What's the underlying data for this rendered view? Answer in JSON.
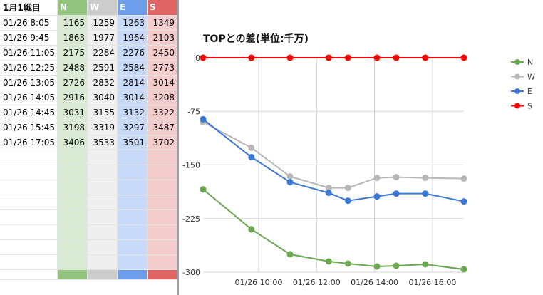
{
  "sheet": {
    "header": [
      "1月1戦目",
      "N",
      "W",
      "E",
      "S"
    ],
    "rows": [
      [
        "01/26 8:05",
        "1165",
        "1259",
        "1263",
        "1349"
      ],
      [
        "01/26 9:45",
        "1863",
        "1977",
        "1964",
        "2103"
      ],
      [
        "01/26 11:05",
        "2175",
        "2284",
        "2276",
        "2450"
      ],
      [
        "01/26 12:25",
        "2488",
        "2591",
        "2584",
        "2773"
      ],
      [
        "01/26 13:05",
        "2726",
        "2832",
        "2814",
        "3014"
      ],
      [
        "01/26 14:05",
        "2916",
        "3040",
        "3014",
        "3208"
      ],
      [
        "01/26 14:45",
        "3031",
        "3155",
        "3132",
        "3322"
      ],
      [
        "01/26 15:45",
        "3198",
        "3319",
        "3297",
        "3487"
      ],
      [
        "01/26 17:05",
        "3406",
        "3533",
        "3501",
        "3702"
      ]
    ],
    "empty_rows": 8,
    "column_colors": {
      "N": "#93c47d",
      "W": "#cccccc",
      "E": "#6d9eeb",
      "S": "#e06666"
    }
  },
  "chart_data": {
    "type": "line",
    "title": "TOPとの差(単位:千万)",
    "x": [
      "01/26 8:05",
      "01/26 9:45",
      "01/26 11:05",
      "01/26 12:25",
      "01/26 13:05",
      "01/26 14:05",
      "01/26 14:45",
      "01/26 15:45",
      "01/26 17:05"
    ],
    "x_ticks": [
      "01/26 10:00",
      "01/26 12:00",
      "01/26 14:00",
      "01/26 16:00"
    ],
    "y_ticks": [
      0,
      -75,
      -150,
      -225,
      -300
    ],
    "ylim": [
      -300,
      0
    ],
    "series": [
      {
        "name": "N",
        "color": "#6aa84f",
        "values": [
          -184,
          -240,
          -275,
          -285,
          -288,
          -292,
          -291,
          -289,
          -296
        ]
      },
      {
        "name": "W",
        "color": "#b7b7b7",
        "values": [
          -90,
          -126,
          -166,
          -182,
          -182,
          -168,
          -167,
          -168,
          -169
        ]
      },
      {
        "name": "E",
        "color": "#3c78d8",
        "values": [
          -86,
          -139,
          -174,
          -189,
          -200,
          -194,
          -190,
          -190,
          -201
        ]
      },
      {
        "name": "S",
        "color": "#ff0000",
        "values": [
          0,
          0,
          0,
          0,
          0,
          0,
          0,
          0,
          0
        ]
      }
    ],
    "legend": "right",
    "grid": true
  }
}
